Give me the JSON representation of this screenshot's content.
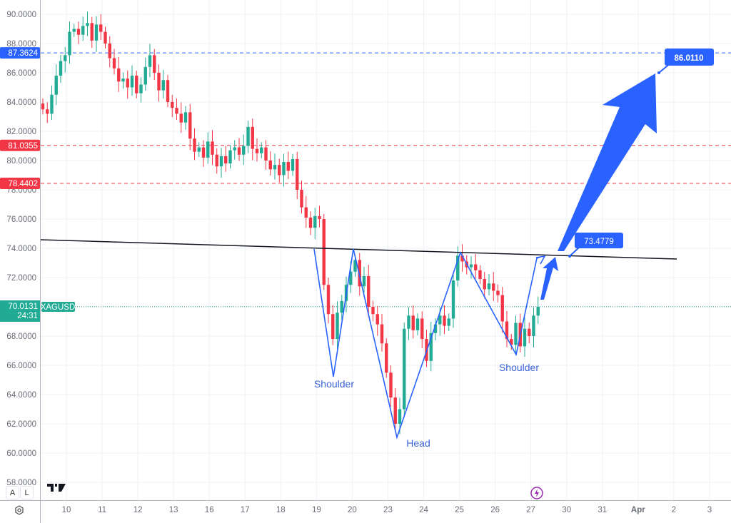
{
  "chart_data": {
    "type": "candlestick",
    "symbol": "XAGUSD",
    "y_ticks": [
      "90.0000",
      "88.0000",
      "86.0000",
      "84.0000",
      "82.0000",
      "80.0000",
      "78.0000",
      "76.0000",
      "74.0000",
      "72.0000",
      "68.0000",
      "66.0000",
      "64.0000",
      "62.0000",
      "60.0000",
      "58.0000"
    ],
    "ylim": [
      57.5,
      91
    ],
    "x_ticks": [
      "10",
      "11",
      "12",
      "13",
      "16",
      "17",
      "18",
      "19",
      "20",
      "23",
      "24",
      "25",
      "26",
      "27",
      "30",
      "31",
      "Apr",
      "2",
      "3"
    ],
    "candles_per_day": 8,
    "first_open": 83.9,
    "closes": [
      83.5,
      83.2,
      84.5,
      85.8,
      86.8,
      87.2,
      88.8,
      89.0,
      88.6,
      89.2,
      89.4,
      88.2,
      89.3,
      88.8,
      88.0,
      87.0,
      86.3,
      85.4,
      85.6,
      85.0,
      85.8,
      84.6,
      85.2,
      86.4,
      87.2,
      86.0,
      84.8,
      85.5,
      84.0,
      83.6,
      83.2,
      82.6,
      83.3,
      81.5,
      80.6,
      80.9,
      80.2,
      81.3,
      80.4,
      79.6,
      80.3,
      79.8,
      80.7,
      80.9,
      80.4,
      81.0,
      82.3,
      80.8,
      80.5,
      80.9,
      80.0,
      79.4,
      79.7,
      79.0,
      79.9,
      79.3,
      80.1,
      78.0,
      76.8,
      76.1,
      75.4,
      76.2,
      76.0,
      71.5,
      69.5,
      67.8,
      69.6,
      70.4,
      71.5,
      72.4,
      73.2,
      71.4,
      72.1,
      70.0,
      69.5,
      68.8,
      67.5,
      65.5,
      63.8,
      62.0,
      63.0,
      68.5,
      69.4,
      68.4,
      69.2,
      67.8,
      66.3,
      68.2,
      68.8,
      69.4,
      68.7,
      69.2,
      71.8,
      73.5,
      73.1,
      72.7,
      72.9,
      72.5,
      71.9,
      71.2,
      71.6,
      71.1,
      70.8,
      69.0,
      67.8,
      67.4,
      68.9,
      67.3,
      68.5,
      68.0,
      69.4,
      70.0
    ],
    "horizontal_levels": [
      {
        "price": "87.3624",
        "color": "#2962ff",
        "style": "dashed"
      },
      {
        "price": "81.0355",
        "color": "#f23645",
        "style": "dashed"
      },
      {
        "price": "78.4402",
        "color": "#f23645",
        "style": "dashed"
      }
    ],
    "current_price": {
      "price": "70.0131",
      "countdown": "24:31",
      "color": "#22ab94"
    },
    "annotations": {
      "left_shoulder": "Shoulder",
      "head": "Head",
      "right_shoulder": "Shoulder",
      "neckline_target": "73.4779",
      "price_target": "86.0110"
    },
    "colors": {
      "up": "#22ab94",
      "down": "#f23645",
      "drawing": "#2962ff"
    }
  },
  "controls": {
    "auto": "A",
    "log": "L"
  }
}
